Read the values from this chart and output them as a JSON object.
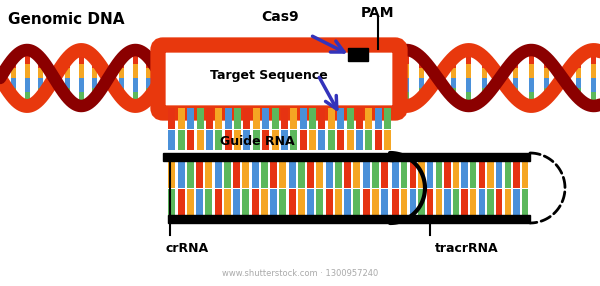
{
  "bg_color": "#ffffff",
  "orange": "#e8380d",
  "dark_red": "#8b0000",
  "purple": "#3333bb",
  "black": "#000000",
  "base_colors": [
    "#e63312",
    "#f5a623",
    "#4a90d9",
    "#5cb85c"
  ],
  "base_colors2": [
    "#e63312",
    "#f5a623",
    "#4a90d9",
    "#5cb85c",
    "#d0021b"
  ],
  "labels": {
    "genomic_dna": "Genomic DNA",
    "cas9": "Cas9",
    "pam": "PAM",
    "target_sequence": "Target Sequence",
    "guide_rna": "Guide RNA",
    "crRNA": "crRNA",
    "tracrRNA": "tracrRNA",
    "watermark": "www.shutterstock.com · 1300957240"
  },
  "figsize": [
    6.0,
    2.86
  ],
  "dpi": 100
}
